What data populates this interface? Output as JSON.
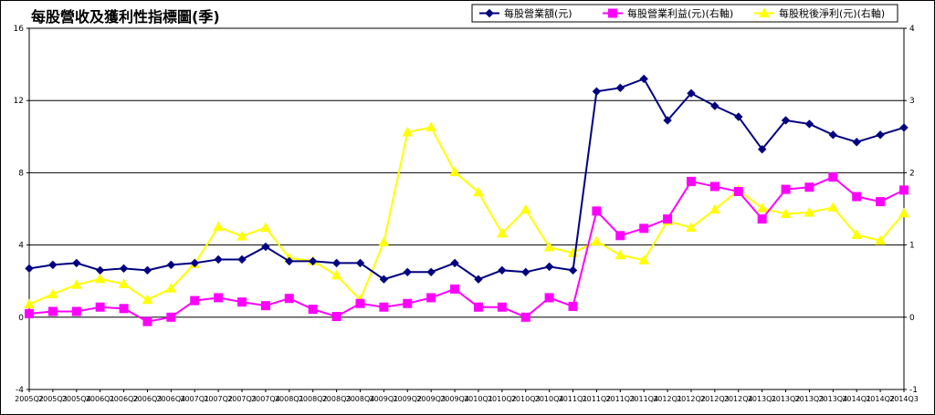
{
  "chart_data": {
    "type": "line",
    "title": "每股營收及獲利性指標圖(季)",
    "categories": [
      "2005Q2",
      "2005Q3",
      "2005Q4",
      "2006Q1",
      "2006Q2",
      "2006Q3",
      "2006Q4",
      "2007Q1",
      "2007Q2",
      "2007Q3",
      "2007Q4",
      "2008Q1",
      "2008Q2",
      "2008Q3",
      "2008Q4",
      "2009Q1",
      "2009Q2",
      "2009Q3",
      "2009Q4",
      "2010Q1",
      "2010Q2",
      "2010Q3",
      "2010Q4",
      "2011Q1",
      "2011Q2",
      "2011Q3",
      "2011Q4",
      "2012Q1",
      "2012Q2",
      "2012Q3",
      "2012Q4",
      "2013Q1",
      "2013Q2",
      "2013Q3",
      "2013Q4",
      "2014Q1",
      "2014Q2",
      "2014Q3"
    ],
    "left_axis": {
      "min": -4,
      "max": 16,
      "ticks": [
        -4,
        0,
        4,
        8,
        12,
        16
      ]
    },
    "right_axis": {
      "min": -1,
      "max": 4,
      "ticks": [
        -1,
        0,
        1,
        2,
        3,
        4
      ]
    },
    "grid": true,
    "legend_position": "top-right",
    "series": [
      {
        "name": "每股營業額(元)",
        "axis": "left",
        "color": "#000080",
        "marker": "diamond",
        "values": [
          2.7,
          2.9,
          3.0,
          2.6,
          2.7,
          2.6,
          2.9,
          3.0,
          3.2,
          3.2,
          3.9,
          3.1,
          3.1,
          3.0,
          3.0,
          2.1,
          2.5,
          2.5,
          3.0,
          2.1,
          2.6,
          2.5,
          2.8,
          2.6,
          12.5,
          12.7,
          13.2,
          10.9,
          12.4,
          11.7,
          11.1,
          9.3,
          10.9,
          10.7,
          10.1,
          9.7,
          10.1,
          10.5
        ]
      },
      {
        "name": "每股營業利益(元)(右軸)",
        "axis": "right",
        "color": "#FF00FF",
        "marker": "square",
        "values": [
          0.05,
          0.08,
          0.08,
          0.14,
          0.12,
          -0.06,
          0.0,
          0.23,
          0.27,
          0.21,
          0.16,
          0.26,
          0.11,
          0.01,
          0.19,
          0.14,
          0.19,
          0.27,
          0.39,
          0.14,
          0.14,
          0.0,
          0.27,
          0.15,
          1.47,
          1.13,
          1.23,
          1.36,
          1.88,
          1.81,
          1.74,
          1.36,
          1.77,
          1.8,
          1.94,
          1.67,
          1.6,
          1.76
        ]
      },
      {
        "name": "每股稅後淨利(元)(右軸)",
        "axis": "right",
        "color": "#FFFF00",
        "marker": "triangle",
        "values": [
          0.18,
          0.32,
          0.45,
          0.53,
          0.46,
          0.24,
          0.4,
          0.74,
          1.25,
          1.12,
          1.24,
          0.82,
          0.78,
          0.58,
          0.24,
          1.04,
          2.56,
          2.63,
          2.01,
          1.73,
          1.16,
          1.49,
          0.97,
          0.89,
          1.05,
          0.86,
          0.79,
          1.33,
          1.24,
          1.49,
          1.76,
          1.51,
          1.43,
          1.45,
          1.52,
          1.14,
          1.06,
          1.44
        ]
      }
    ]
  }
}
